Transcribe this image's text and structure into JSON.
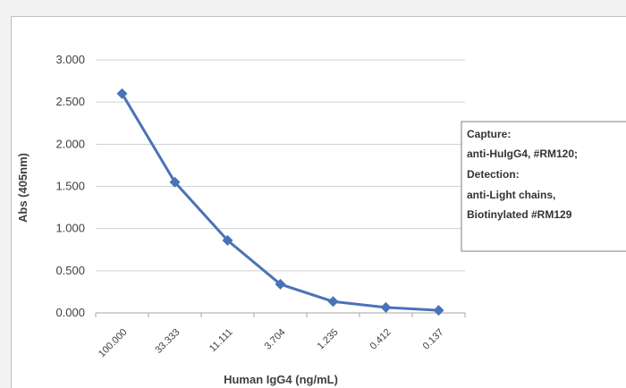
{
  "chart_data": {
    "type": "line",
    "categories": [
      "100.000",
      "33.333",
      "11.111",
      "3.704",
      "1.235",
      "0.412",
      "0.137"
    ],
    "series": [
      {
        "values": [
          2.6,
          1.55,
          0.86,
          0.34,
          0.135,
          0.065,
          0.03
        ]
      }
    ],
    "ylim": [
      0,
      3
    ],
    "yticks": [
      "0.000",
      "0.500",
      "1.000",
      "1.500",
      "2.000",
      "2.500",
      "3.000"
    ],
    "xlabel": "Human IgG4 (ng/mL)",
    "ylabel": "Abs (405nm)",
    "grid": true,
    "marker": "diamond",
    "color": "#4a72b8",
    "annotation": {
      "lines": [
        "Capture:",
        "anti-HuIgG4, #RM120;",
        "Detection:",
        "anti-Light chains,",
        "Biotinylated #RM129"
      ],
      "placement": "right"
    }
  }
}
